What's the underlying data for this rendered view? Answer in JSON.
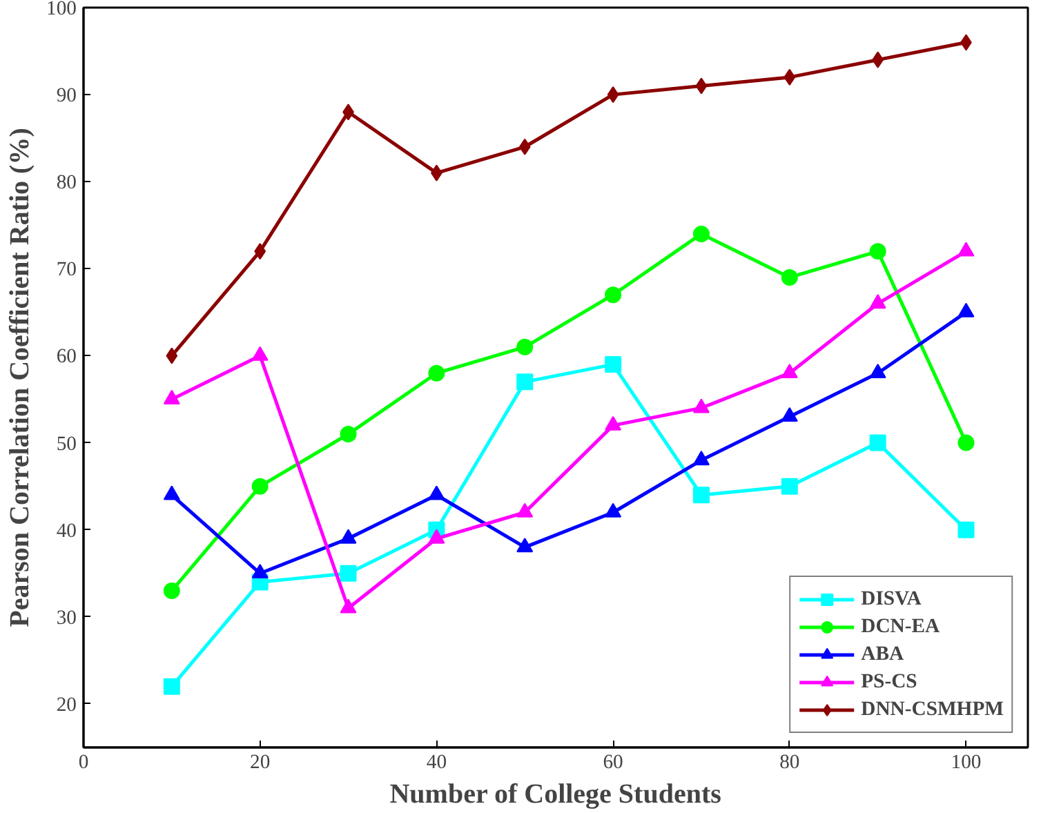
{
  "chart_data": {
    "type": "line",
    "xlabel": "Number of College Students",
    "ylabel": "Pearson Correlation Coefficient Ratio (%)",
    "x": [
      10,
      20,
      30,
      40,
      50,
      60,
      70,
      80,
      90,
      100
    ],
    "series": [
      {
        "name": "DISVA",
        "color": "#00ffff",
        "marker": "square",
        "values": [
          22,
          34,
          35,
          40,
          57,
          59,
          44,
          45,
          50,
          40
        ]
      },
      {
        "name": "DCN-EA",
        "color": "#00ff00",
        "marker": "circle",
        "values": [
          33,
          45,
          51,
          58,
          61,
          67,
          74,
          69,
          72,
          50
        ]
      },
      {
        "name": "ABA",
        "color": "#0000ff",
        "marker": "triangle",
        "values": [
          44,
          35,
          39,
          44,
          38,
          42,
          48,
          53,
          58,
          65
        ]
      },
      {
        "name": "PS-CS",
        "color": "#ff00ff",
        "marker": "triangle",
        "values": [
          55,
          60,
          31,
          39,
          42,
          52,
          54,
          58,
          66,
          72
        ]
      },
      {
        "name": "DNN-CSMHPM",
        "color": "#8b0000",
        "marker": "diamond",
        "values": [
          60,
          72,
          88,
          81,
          84,
          90,
          91,
          92,
          94,
          96
        ]
      }
    ],
    "xlim": [
      0,
      107
    ],
    "ylim": [
      15,
      100
    ],
    "xticks": [
      0,
      20,
      40,
      60,
      80,
      100
    ],
    "yticks": [
      20,
      30,
      40,
      50,
      60,
      70,
      80,
      90,
      100
    ],
    "grid": false,
    "legend": "bottom right",
    "line_style": "solid"
  }
}
